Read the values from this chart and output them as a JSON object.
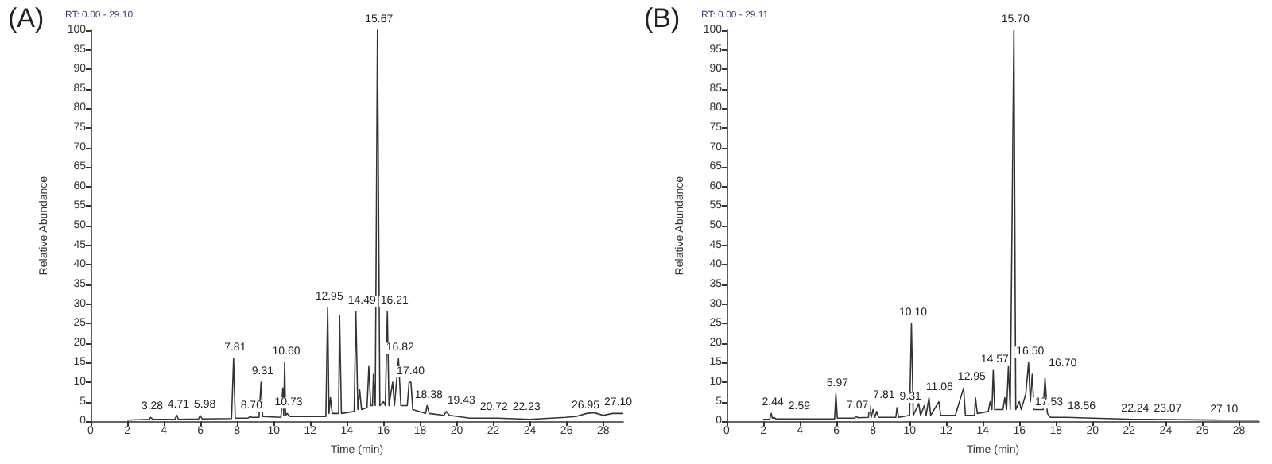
{
  "chart_data": [
    {
      "type": "line",
      "title": "(A)",
      "subtitle": "RT: 0.00 - 29.10",
      "xlabel": "Time (min)",
      "ylabel": "Relative Abundance",
      "color": "#333333",
      "marker": "none",
      "x": [
        2.0,
        3.2,
        3.28,
        3.4,
        4.6,
        4.71,
        4.8,
        5.9,
        5.98,
        6.1,
        7.7,
        7.81,
        7.9,
        8.6,
        8.7,
        8.8,
        9.2,
        9.31,
        9.4,
        10.4,
        10.5,
        10.55,
        10.6,
        10.65,
        10.73,
        10.9,
        12.85,
        12.95,
        13.02,
        13.1,
        13.2,
        13.55,
        13.6,
        13.7,
        14.4,
        14.49,
        14.6,
        14.7,
        14.8,
        15.1,
        15.2,
        15.3,
        15.4,
        15.45,
        15.55,
        15.67,
        15.8,
        16.0,
        16.1,
        16.21,
        16.3,
        16.5,
        16.6,
        16.82,
        16.95,
        17.3,
        17.4,
        17.5,
        17.6,
        18.3,
        18.38,
        18.5,
        19.3,
        19.43,
        19.6,
        20.72,
        22.23,
        24.0,
        25.95,
        26.5,
        27.1,
        27.5,
        28.0,
        28.5,
        29.1
      ],
      "values": [
        0.3,
        0.5,
        1,
        0.5,
        0.5,
        1.5,
        0.5,
        0.6,
        1.5,
        0.6,
        0.7,
        16,
        0.8,
        0.8,
        1.2,
        1,
        1,
        10,
        1.2,
        1,
        8.5,
        1.5,
        15,
        1.5,
        2,
        1.2,
        1.2,
        29,
        2,
        6,
        2,
        2,
        27,
        2,
        2.5,
        28,
        3,
        8,
        3,
        3.5,
        14,
        4,
        4,
        12,
        4,
        100,
        4,
        5,
        4,
        28,
        4,
        10,
        4,
        16,
        4,
        4,
        10,
        10,
        3,
        2,
        4,
        2,
        1.5,
        2.5,
        1.5,
        0.8,
        0.8,
        0.5,
        1,
        1.2,
        2,
        2.2,
        1.5,
        2,
        2
      ],
      "xlim": [
        0,
        29.1
      ],
      "xticks": [
        0,
        2,
        4,
        6,
        8,
        10,
        12,
        14,
        16,
        18,
        20,
        22,
        24,
        26,
        28
      ],
      "ylim": [
        0,
        100
      ],
      "yticks": [
        0,
        5,
        10,
        15,
        20,
        25,
        30,
        35,
        40,
        45,
        50,
        55,
        60,
        65,
        70,
        75,
        80,
        85,
        90,
        95,
        100
      ],
      "annotations": [
        {
          "text": "3.28",
          "x": 3.28,
          "y": 1
        },
        {
          "text": "4.71",
          "x": 4.71,
          "y": 1.5
        },
        {
          "text": "5.98",
          "x": 5.98,
          "y": 1.5
        },
        {
          "text": "7.81",
          "x": 7.81,
          "y": 16
        },
        {
          "text": "8.70",
          "x": 8.7,
          "y": 1.2
        },
        {
          "text": "9.31",
          "x": 9.31,
          "y": 10
        },
        {
          "text": "10.60",
          "x": 10.6,
          "y": 15
        },
        {
          "text": "10.73",
          "x": 10.73,
          "y": 2
        },
        {
          "text": "12.95",
          "x": 12.95,
          "y": 29
        },
        {
          "text": "14.49",
          "x": 14.49,
          "y": 28
        },
        {
          "text": "15.67",
          "x": 15.67,
          "y": 100
        },
        {
          "text": "16.21",
          "x": 16.21,
          "y": 28
        },
        {
          "text": "16.82",
          "x": 16.82,
          "y": 16
        },
        {
          "text": "17.40",
          "x": 17.4,
          "y": 10
        },
        {
          "text": "18.38",
          "x": 18.38,
          "y": 4
        },
        {
          "text": "19.43",
          "x": 19.43,
          "y": 2.5
        },
        {
          "text": "20.72",
          "x": 20.72,
          "y": 0.8
        },
        {
          "text": "22.23",
          "x": 22.23,
          "y": 0.8
        },
        {
          "text": "26.95",
          "x": 26.95,
          "y": 1.2
        },
        {
          "text": "27.10",
          "x": 27.1,
          "y": 2
        }
      ]
    },
    {
      "type": "line",
      "title": "(B)",
      "subtitle": "RT: 0.00 - 29.11",
      "xlabel": "Time (min)",
      "ylabel": "Relative Abundance",
      "color": "#333333",
      "marker": "none",
      "x": [
        2.0,
        2.35,
        2.44,
        2.5,
        2.59,
        2.7,
        5.9,
        5.97,
        6.05,
        7.0,
        7.07,
        7.2,
        7.75,
        7.81,
        7.9,
        8.0,
        8.1,
        8.2,
        8.3,
        9.25,
        9.31,
        9.4,
        10.0,
        10.1,
        10.2,
        10.5,
        10.6,
        10.8,
        10.9,
        11.06,
        11.15,
        11.6,
        11.7,
        12.5,
        12.95,
        13.05,
        13.55,
        13.6,
        13.7,
        14.3,
        14.4,
        14.5,
        14.57,
        14.65,
        15.1,
        15.2,
        15.3,
        15.4,
        15.5,
        15.7,
        15.8,
        16.0,
        16.1,
        16.35,
        16.5,
        16.6,
        16.7,
        16.8,
        17.3,
        17.4,
        17.53,
        17.7,
        18.56,
        20.0,
        22.24,
        23.07,
        27.1,
        29.11
      ],
      "values": [
        0.5,
        0.5,
        2,
        0.8,
        1,
        0.6,
        0.6,
        7,
        0.8,
        0.8,
        1.2,
        0.9,
        1,
        4,
        1,
        3,
        1,
        2.5,
        1,
        1,
        3.5,
        1,
        1.5,
        25,
        1.5,
        4.5,
        1.5,
        4,
        1.5,
        6,
        1.5,
        5,
        1.5,
        1.5,
        8.5,
        1.5,
        1.5,
        6,
        2,
        2.5,
        5,
        3,
        13,
        3,
        3,
        6,
        3,
        14,
        3,
        100,
        3,
        5,
        3,
        7,
        15,
        5,
        12,
        3,
        3,
        11,
        2,
        1,
        1,
        0.8,
        0.5,
        0.5,
        0.3,
        0.3
      ],
      "xlim": [
        0,
        29.11
      ],
      "xticks": [
        0,
        2,
        4,
        6,
        8,
        10,
        12,
        14,
        16,
        18,
        20,
        22,
        24,
        26,
        28
      ],
      "ylim": [
        0,
        100
      ],
      "yticks": [
        0,
        5,
        10,
        15,
        20,
        25,
        30,
        35,
        40,
        45,
        50,
        55,
        60,
        65,
        70,
        75,
        80,
        85,
        90,
        95,
        100
      ],
      "annotations": [
        {
          "text": "2.44",
          "x": 2.44,
          "y": 2
        },
        {
          "text": "2.59",
          "x": 2.59,
          "y": 1
        },
        {
          "text": "5.97",
          "x": 5.97,
          "y": 7
        },
        {
          "text": "7.07",
          "x": 7.07,
          "y": 1.2
        },
        {
          "text": "7.81",
          "x": 7.81,
          "y": 4
        },
        {
          "text": "9.31",
          "x": 9.31,
          "y": 3.5
        },
        {
          "text": "10.10",
          "x": 10.1,
          "y": 25
        },
        {
          "text": "11.06",
          "x": 11.06,
          "y": 6
        },
        {
          "text": "12.95",
          "x": 12.95,
          "y": 8.5
        },
        {
          "text": "14.57",
          "x": 14.57,
          "y": 13
        },
        {
          "text": "15.70",
          "x": 15.7,
          "y": 100
        },
        {
          "text": "16.50",
          "x": 16.5,
          "y": 15
        },
        {
          "text": "16.70",
          "x": 16.7,
          "y": 12
        },
        {
          "text": "17.53",
          "x": 17.53,
          "y": 2
        },
        {
          "text": "18.56",
          "x": 18.56,
          "y": 1
        },
        {
          "text": "22.24",
          "x": 22.24,
          "y": 0.5
        },
        {
          "text": "23.07",
          "x": 23.07,
          "y": 0.5
        },
        {
          "text": "27.10",
          "x": 27.1,
          "y": 0.3
        }
      ]
    }
  ]
}
